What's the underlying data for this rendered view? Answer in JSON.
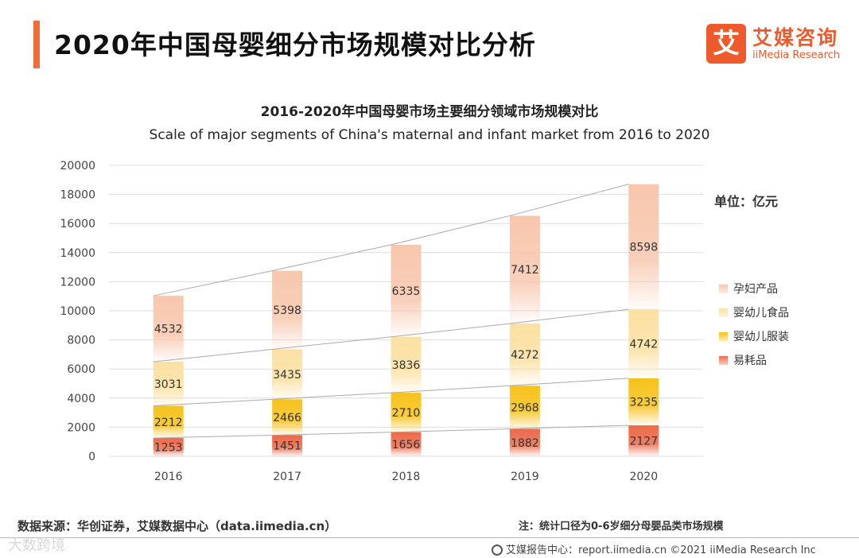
{
  "header": {
    "title": "2020年中国母婴细分市场规模对比分析",
    "logo_mark": "艾",
    "logo_cn": "艾媒咨询",
    "logo_en": "iiMedia Research"
  },
  "chart_data": {
    "type": "bar",
    "stacked": true,
    "title": "2016-2020年中国母婴市场主要细分领域市场规模对比",
    "subtitle": "Scale of major segments of China's maternal and infant market from 2016 to 2020",
    "unit": "单位：亿元",
    "categories": [
      "2016",
      "2017",
      "2018",
      "2019",
      "2020"
    ],
    "ylim": [
      0,
      20000
    ],
    "yticks": [
      0,
      2000,
      4000,
      6000,
      8000,
      10000,
      12000,
      14000,
      16000,
      18000,
      20000
    ],
    "grid": true,
    "legend_position": "right",
    "series": [
      {
        "name": "易耗品",
        "values": [
          1253,
          1451,
          1656,
          1882,
          2127
        ],
        "color": "#ec6a4a"
      },
      {
        "name": "婴幼儿服装",
        "values": [
          2212,
          2466,
          2710,
          2968,
          3235
        ],
        "color": "#f7c21b"
      },
      {
        "name": "婴幼儿食品",
        "values": [
          3031,
          3435,
          3836,
          4272,
          4742
        ],
        "color": "#fbe0a2"
      },
      {
        "name": "孕妇产品",
        "values": [
          4532,
          5398,
          6335,
          7412,
          8598
        ],
        "color": "#f7c7ad"
      }
    ],
    "legend_order": [
      "孕妇产品",
      "婴幼儿食品",
      "婴幼儿服装",
      "易耗品"
    ]
  },
  "footer": {
    "source": "数据来源：华创证券，艾媒数据中心（data.iimedia.cn）",
    "note": "注：统计口径为0-6岁细分母婴品类市场规模",
    "report": "艾媒报告中心：report.iimedia.cn   ©2021  iiMedia Research  Inc",
    "watermark": "大数跨境"
  }
}
